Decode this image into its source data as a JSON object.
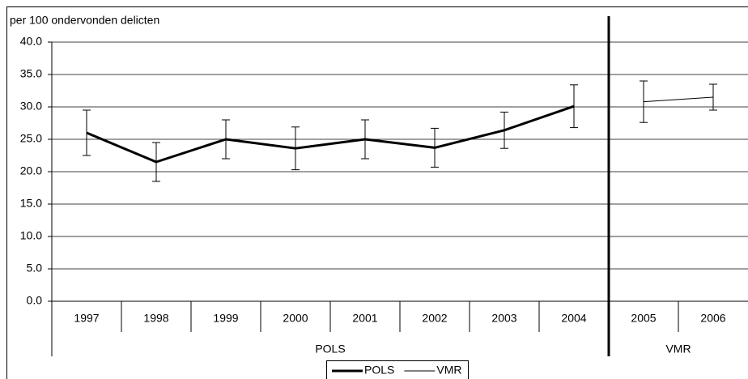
{
  "chart_data": {
    "type": "line",
    "y_label": "per 100 ondervonden delicten",
    "categories": [
      "1997",
      "1998",
      "1999",
      "2000",
      "2001",
      "2002",
      "2003",
      "2004",
      "2005",
      "2006"
    ],
    "series": [
      {
        "name": "POLS",
        "color": "#000000",
        "line_width": 3,
        "values": [
          26.0,
          21.5,
          25.0,
          23.6,
          25.0,
          23.7,
          26.4,
          30.1,
          null,
          null
        ],
        "errors": [
          3.5,
          3.0,
          3.0,
          3.3,
          3.0,
          3.0,
          2.8,
          3.3,
          null,
          null
        ]
      },
      {
        "name": "VMR",
        "color": "#000000",
        "line_width": 1,
        "values": [
          null,
          null,
          null,
          null,
          null,
          null,
          null,
          null,
          30.8,
          31.5
        ],
        "errors": [
          null,
          null,
          null,
          null,
          null,
          null,
          null,
          null,
          3.2,
          2.0
        ]
      }
    ],
    "ylim": [
      0,
      40
    ],
    "yticks": [
      {
        "value": 0,
        "label": "0.0"
      },
      {
        "value": 5,
        "label": "5.0"
      },
      {
        "value": 10,
        "label": "10.0"
      },
      {
        "value": 15,
        "label": "15.0"
      },
      {
        "value": 20,
        "label": "20.0"
      },
      {
        "value": 25,
        "label": "25.0"
      },
      {
        "value": 30,
        "label": "30.0"
      },
      {
        "value": 35,
        "label": "35.0"
      },
      {
        "value": 40,
        "label": "40.0"
      }
    ],
    "grid": true,
    "legend": "bottom"
  }
}
